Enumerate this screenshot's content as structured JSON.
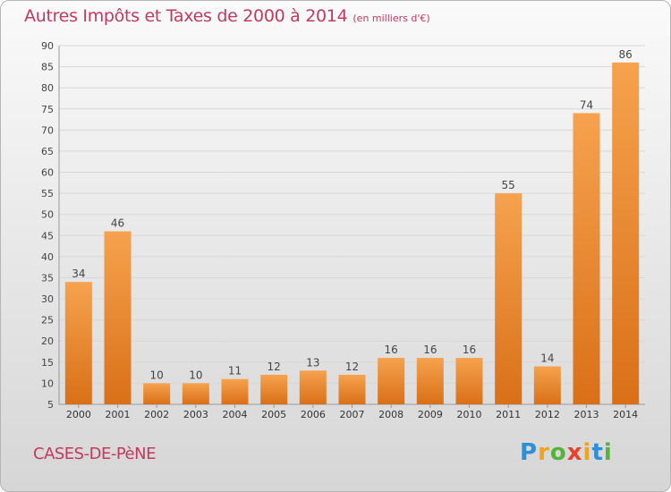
{
  "title": "Autres Impôts et Taxes de 2000 à 2014",
  "title_unit": "(en milliers d'€)",
  "commune": "CASES-DE-PèNE",
  "logo_text": [
    "P",
    "r",
    "o",
    "x",
    "i",
    "t",
    "i"
  ],
  "logo_colors": [
    "#2e8fd6",
    "#f2a31a",
    "#55b33b",
    "#e8402a",
    "#f2a31a",
    "#2e8fd6",
    "#55b33b"
  ],
  "colors": {
    "bar_light": "#f6a24e",
    "bar_dark": "#d97018",
    "title": "#c23a5e"
  },
  "chart_data": {
    "type": "bar",
    "categories": [
      "2000",
      "2001",
      "2002",
      "2003",
      "2004",
      "2005",
      "2006",
      "2007",
      "2008",
      "2009",
      "2010",
      "2011",
      "2012",
      "2013",
      "2014"
    ],
    "values": [
      34,
      46,
      10,
      10,
      11,
      12,
      13,
      12,
      16,
      16,
      16,
      55,
      14,
      74,
      86
    ],
    "ylim": [
      5,
      90
    ],
    "yticks": [
      5,
      10,
      15,
      20,
      25,
      30,
      35,
      40,
      45,
      50,
      55,
      60,
      65,
      70,
      75,
      80,
      85,
      90
    ],
    "grid": true
  }
}
